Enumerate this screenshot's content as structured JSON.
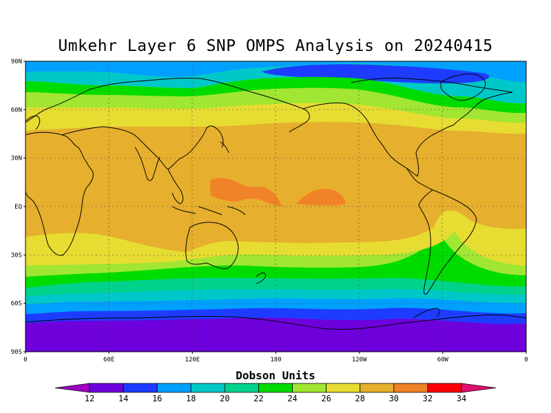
{
  "title": "Umkehr Layer 6 SNP OMPS Analysis on 20240415",
  "lat_labels": [
    "90N",
    "60N",
    "30N",
    "EQ",
    "30S",
    "60S",
    "90S"
  ],
  "lon_labels": [
    "0",
    "60E",
    "120E",
    "180",
    "120W",
    "60W",
    "0"
  ],
  "colorbar": {
    "title": "Dobson Units",
    "levels": [
      "12",
      "14",
      "16",
      "18",
      "20",
      "22",
      "24",
      "26",
      "28",
      "30",
      "32",
      "34"
    ],
    "colors": [
      "#a000c8",
      "#6e00dc",
      "#1e3cff",
      "#00a0ff",
      "#00c8c8",
      "#00d28c",
      "#00dc00",
      "#a0e632",
      "#e6dc32",
      "#e6af2d",
      "#f08228",
      "#fa0000",
      "#e0106e"
    ]
  }
}
